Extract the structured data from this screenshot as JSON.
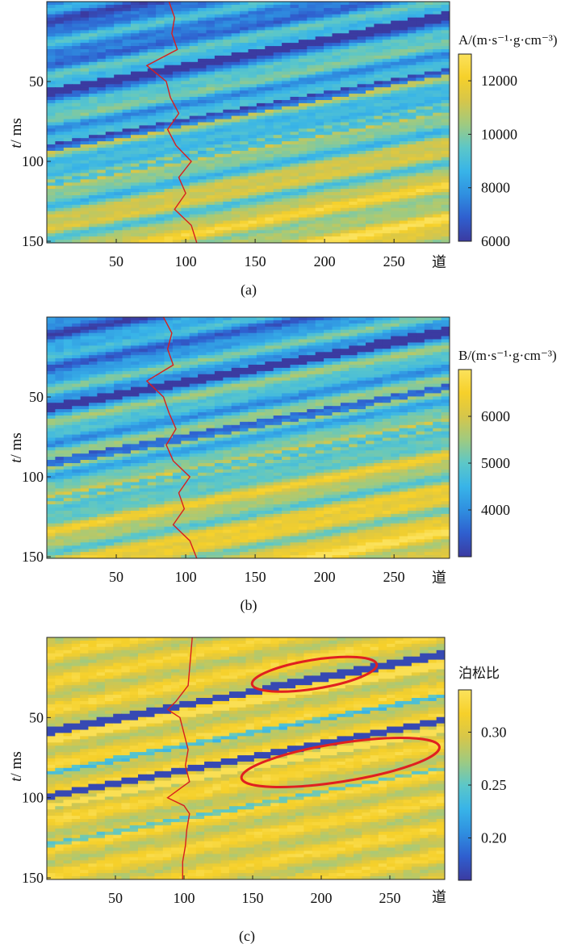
{
  "colormap": [
    "#3b3ba1",
    "#2f5fcf",
    "#2f8fe0",
    "#38b4e8",
    "#5cc7c8",
    "#9fca80",
    "#d6c64a",
    "#f6d02a",
    "#fbe25c"
  ],
  "outline_color": "#e02020",
  "log_color": "#d81e1e",
  "panels": [
    {
      "caption": "(a)",
      "ylabel_italic": "t",
      "ylabel_rest": "/ ms",
      "x_end_label": "道",
      "cbar_title": "A/(m·s⁻¹·g·cm⁻³)",
      "chart_data": {
        "type": "heatmap",
        "title": "",
        "xlim": [
          0,
          290
        ],
        "ylim": [
          0,
          151
        ],
        "xticks": [
          50,
          100,
          150,
          200,
          250
        ],
        "yticks": [
          50,
          100,
          150
        ],
        "clim": [
          6000,
          13000
        ],
        "cbar_ticks": [
          6000,
          8000,
          10000,
          12000
        ],
        "log_trace": {
          "t": [
            0,
            10,
            20,
            30,
            40,
            50,
            60,
            70,
            80,
            90,
            100,
            110,
            120,
            130,
            140,
            151
          ],
          "trace": [
            88,
            92,
            90,
            94,
            72,
            86,
            89,
            95,
            87,
            93,
            104,
            95,
            100,
            92,
            104,
            108
          ]
        },
        "ellipses": []
      }
    },
    {
      "caption": "(b)",
      "ylabel_italic": "t",
      "ylabel_rest": "/ ms",
      "x_end_label": "道",
      "cbar_title": "B/(m·s⁻¹·g·cm⁻³)",
      "chart_data": {
        "type": "heatmap",
        "title": "",
        "xlim": [
          0,
          290
        ],
        "ylim": [
          0,
          151
        ],
        "xticks": [
          50,
          100,
          150,
          200,
          250
        ],
        "yticks": [
          50,
          100,
          150
        ],
        "clim": [
          3000,
          7000
        ],
        "cbar_ticks": [
          4000,
          5000,
          6000
        ],
        "log_trace": {
          "t": [
            0,
            10,
            20,
            30,
            40,
            50,
            60,
            70,
            80,
            90,
            100,
            110,
            120,
            130,
            140,
            151
          ],
          "trace": [
            84,
            90,
            87,
            91,
            72,
            84,
            88,
            93,
            86,
            91,
            103,
            95,
            99,
            91,
            103,
            108
          ]
        },
        "ellipses": []
      }
    },
    {
      "caption": "(c)",
      "ylabel_italic": "t",
      "ylabel_rest": "/ ms",
      "x_end_label": "道",
      "cbar_title": "泊松比",
      "chart_data": {
        "type": "heatmap",
        "title": "",
        "xlim": [
          0,
          290
        ],
        "ylim": [
          0,
          151
        ],
        "xticks": [
          50,
          100,
          150,
          200,
          250
        ],
        "yticks": [
          50,
          100,
          150
        ],
        "clim": [
          0.16,
          0.34
        ],
        "cbar_ticks": [
          0.2,
          0.25,
          0.3
        ],
        "log_trace": {
          "t": [
            0,
            10,
            20,
            30,
            40,
            45,
            50,
            60,
            70,
            80,
            90,
            100,
            105,
            110,
            120,
            130,
            140,
            151
          ],
          "trace": [
            106,
            105,
            104,
            103,
            94,
            88,
            97,
            100,
            103,
            101,
            104,
            88,
            100,
            104,
            102,
            101,
            99,
            99
          ]
        },
        "ellipses": [
          {
            "cx": 195,
            "cy": 23,
            "rx": 46,
            "ry": 9,
            "angle": -9
          },
          {
            "cx": 214,
            "cy": 78,
            "rx": 73,
            "ry": 12,
            "angle": -9
          }
        ]
      }
    }
  ]
}
